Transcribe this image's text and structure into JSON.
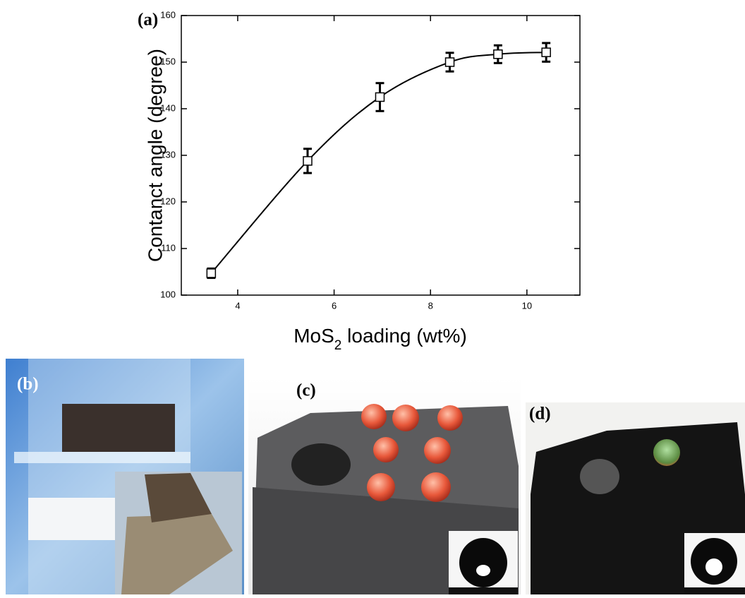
{
  "chart_data": {
    "type": "line",
    "panel_label": "(a)",
    "ylabel": "Contanct angle (degree)",
    "xlabel": [
      "MoS",
      "2",
      " loading (wt%)"
    ],
    "x": [
      3.45,
      5.45,
      6.95,
      8.4,
      9.4,
      10.4
    ],
    "series": [
      {
        "values": [
          104.7,
          128.8,
          142.5,
          150.0,
          151.7,
          152.1
        ],
        "errors": [
          1.0,
          2.6,
          3.0,
          2.0,
          1.9,
          2.0
        ],
        "color": "#000000"
      }
    ],
    "smooth": true,
    "xlim": [
      2.83,
      11.1
    ],
    "ylim": [
      100,
      160
    ],
    "xticks": [
      4,
      6,
      8,
      10
    ],
    "yticks": [
      100,
      110,
      120,
      130,
      140,
      150,
      160
    ]
  },
  "photos": [
    {
      "label": "(b)"
    },
    {
      "label": "(c)"
    },
    {
      "label": "(d)"
    }
  ]
}
